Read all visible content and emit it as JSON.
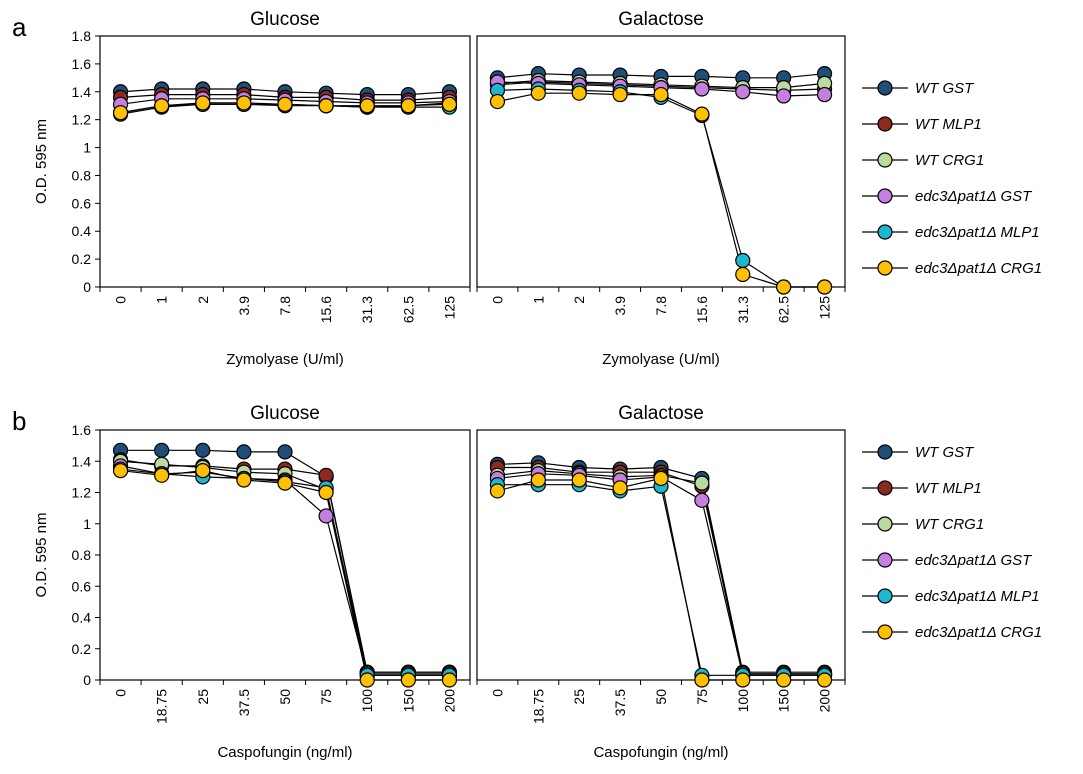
{
  "panels": [
    {
      "letter": "a"
    },
    {
      "letter": "b"
    }
  ],
  "series_styles": [
    {
      "name": "WT GST",
      "color": "#1f4e79"
    },
    {
      "name": "WT MLP1",
      "color": "#8b2a1e"
    },
    {
      "name": "WT CRG1",
      "color": "#b9dc9e"
    },
    {
      "name": "edc3Δpat1Δ GST",
      "color": "#c57fe0"
    },
    {
      "name": "edc3Δpat1Δ MLP1",
      "color": "#1fb6cf"
    },
    {
      "name": "edc3Δpat1Δ CRG1",
      "color": "#ffc000"
    }
  ],
  "chart_data": [
    {
      "type": "line",
      "panel": "a",
      "title": "Glucose",
      "xlabel": "Zymolyase (U/ml)",
      "ylabel": "O.D. 595 nm",
      "ylim": [
        0,
        1.8
      ],
      "yticks": [
        "0",
        "0.2",
        "0.4",
        "0.6",
        "0.8",
        "1",
        "1.2",
        "1.4",
        "1.6",
        "1.8"
      ],
      "categories": [
        "0",
        "1",
        "2",
        "3.9",
        "7.8",
        "15.6",
        "31.3",
        "62.5",
        "125"
      ],
      "legend": "right",
      "grid": false,
      "series": [
        {
          "name": "WT GST",
          "values": [
            1.4,
            1.42,
            1.42,
            1.42,
            1.4,
            1.39,
            1.38,
            1.38,
            1.4
          ]
        },
        {
          "name": "WT MLP1",
          "values": [
            1.36,
            1.38,
            1.38,
            1.38,
            1.36,
            1.36,
            1.34,
            1.34,
            1.36
          ]
        },
        {
          "name": "WT CRG1",
          "values": [
            1.25,
            1.3,
            1.31,
            1.31,
            1.31,
            1.3,
            1.29,
            1.3,
            1.32
          ]
        },
        {
          "name": "edc3Δpat1Δ GST",
          "values": [
            1.31,
            1.35,
            1.35,
            1.35,
            1.34,
            1.33,
            1.32,
            1.32,
            1.33
          ]
        },
        {
          "name": "edc3Δpat1Δ MLP1",
          "values": [
            1.24,
            1.29,
            1.31,
            1.31,
            1.3,
            1.3,
            1.29,
            1.29,
            1.29
          ]
        },
        {
          "name": "edc3Δpat1Δ CRG1",
          "values": [
            1.25,
            1.3,
            1.32,
            1.32,
            1.31,
            1.3,
            1.3,
            1.3,
            1.31
          ]
        }
      ]
    },
    {
      "type": "line",
      "panel": "a",
      "title": "Galactose",
      "xlabel": "Zymolyase (U/ml)",
      "ylabel": "",
      "ylim": [
        0,
        1.8
      ],
      "categories": [
        "0",
        "1",
        "2",
        "3.9",
        "7.8",
        "15.6",
        "31.3",
        "62.5",
        "125"
      ],
      "legend": "right",
      "grid": false,
      "series": [
        {
          "name": "WT GST",
          "values": [
            1.5,
            1.53,
            1.52,
            1.52,
            1.51,
            1.51,
            1.5,
            1.5,
            1.53
          ]
        },
        {
          "name": "WT MLP1",
          "values": [
            1.45,
            1.47,
            1.46,
            1.45,
            1.44,
            1.43,
            1.42,
            1.41,
            1.42
          ]
        },
        {
          "name": "WT CRG1",
          "values": [
            1.46,
            1.48,
            1.47,
            1.46,
            1.45,
            1.44,
            1.43,
            1.43,
            1.46
          ]
        },
        {
          "name": "edc3Δpat1Δ GST",
          "values": [
            1.47,
            1.46,
            1.45,
            1.44,
            1.43,
            1.42,
            1.4,
            1.37,
            1.38
          ]
        },
        {
          "name": "edc3Δpat1Δ MLP1",
          "values": [
            1.41,
            1.42,
            1.41,
            1.4,
            1.36,
            1.23,
            0.19,
            0.0,
            0.0
          ]
        },
        {
          "name": "edc3Δpat1Δ CRG1",
          "values": [
            1.33,
            1.39,
            1.39,
            1.38,
            1.38,
            1.24,
            0.09,
            0.0,
            0.0
          ]
        }
      ]
    },
    {
      "type": "line",
      "panel": "b",
      "title": "Glucose",
      "xlabel": "Caspofungin (ng/ml)",
      "ylabel": "O.D. 595 nm",
      "ylim": [
        0,
        1.6
      ],
      "yticks": [
        "0",
        "0.2",
        "0.4",
        "0.6",
        "0.8",
        "1",
        "1.2",
        "1.4",
        "1.6"
      ],
      "categories": [
        "0",
        "18.75",
        "25",
        "37.5",
        "50",
        "75",
        "100",
        "150",
        "200"
      ],
      "legend": "right",
      "grid": false,
      "series": [
        {
          "name": "WT GST",
          "values": [
            1.47,
            1.47,
            1.47,
            1.46,
            1.46,
            1.3,
            0.05,
            0.05,
            0.05
          ]
        },
        {
          "name": "WT MLP1",
          "values": [
            1.41,
            1.37,
            1.37,
            1.35,
            1.35,
            1.31,
            0.05,
            0.05,
            0.05
          ]
        },
        {
          "name": "WT CRG1",
          "values": [
            1.4,
            1.38,
            1.36,
            1.33,
            1.32,
            1.22,
            0.04,
            0.04,
            0.04
          ]
        },
        {
          "name": "edc3Δpat1Δ GST",
          "values": [
            1.37,
            1.32,
            1.33,
            1.29,
            1.28,
            1.05,
            0.03,
            0.03,
            0.03
          ]
        },
        {
          "name": "edc3Δpat1Δ MLP1",
          "values": [
            1.35,
            1.32,
            1.3,
            1.29,
            1.27,
            1.23,
            0.03,
            0.03,
            0.03
          ]
        },
        {
          "name": "edc3Δpat1Δ CRG1",
          "values": [
            1.34,
            1.31,
            1.34,
            1.28,
            1.26,
            1.2,
            0.0,
            0.0,
            0.0
          ]
        }
      ]
    },
    {
      "type": "line",
      "panel": "b",
      "title": "Galactose",
      "xlabel": "Caspofungin (ng/ml)",
      "ylabel": "",
      "ylim": [
        0,
        1.6
      ],
      "categories": [
        "0",
        "18.75",
        "25",
        "37.5",
        "50",
        "75",
        "100",
        "150",
        "200"
      ],
      "legend": "right",
      "grid": false,
      "series": [
        {
          "name": "WT GST",
          "values": [
            1.38,
            1.39,
            1.36,
            1.35,
            1.36,
            1.29,
            0.05,
            0.05,
            0.05
          ]
        },
        {
          "name": "WT MLP1",
          "values": [
            1.36,
            1.36,
            1.33,
            1.33,
            1.33,
            1.24,
            0.04,
            0.04,
            0.04
          ]
        },
        {
          "name": "WT CRG1",
          "values": [
            1.31,
            1.34,
            1.32,
            1.3,
            1.31,
            1.26,
            0.04,
            0.04,
            0.04
          ]
        },
        {
          "name": "edc3Δpat1Δ GST",
          "values": [
            1.29,
            1.32,
            1.31,
            1.28,
            1.3,
            1.15,
            0.03,
            0.03,
            0.03
          ]
        },
        {
          "name": "edc3Δpat1Δ MLP1",
          "values": [
            1.25,
            1.25,
            1.25,
            1.21,
            1.24,
            0.03,
            0.03,
            0.03,
            0.03
          ]
        },
        {
          "name": "edc3Δpat1Δ CRG1",
          "values": [
            1.21,
            1.28,
            1.28,
            1.23,
            1.29,
            0.0,
            0.0,
            0.0,
            0.0
          ]
        }
      ]
    }
  ]
}
